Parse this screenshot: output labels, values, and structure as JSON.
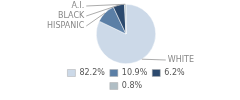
{
  "chart_data": {
    "type": "pie",
    "categories": [
      "WHITE",
      "HISPANIC",
      "BLACK",
      "A.I."
    ],
    "values": [
      82.2,
      10.9,
      6.2,
      0.8
    ],
    "value_labels": [
      "82.2%",
      "10.9%",
      "6.2%",
      "0.8%"
    ],
    "colors": [
      "#ccd9e8",
      "#5b7fa6",
      "#2c4a6e",
      "#b0bec5"
    ],
    "legend": "bottom"
  }
}
